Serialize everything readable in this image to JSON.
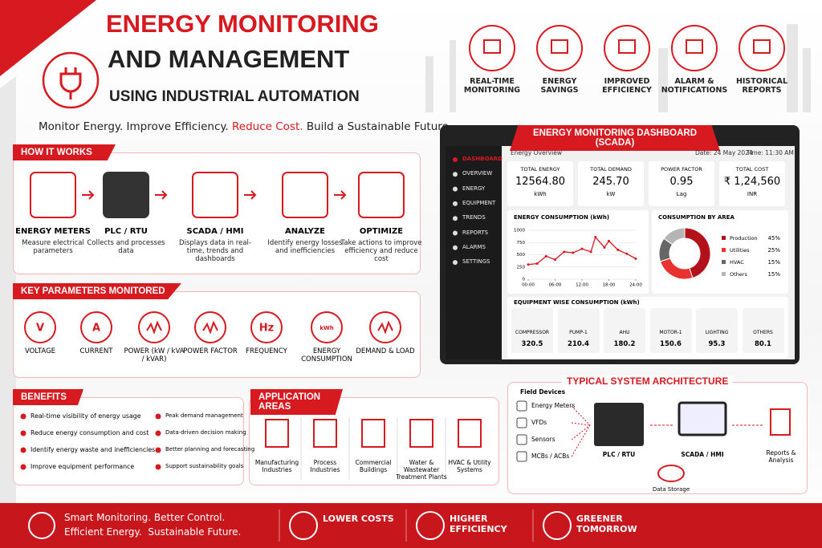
{
  "header": {
    "title_line1": "ENERGY MONITORING",
    "title_line2": "AND MANAGEMENT",
    "title_line3": "USING INDUSTRIAL AUTOMATION",
    "tagline_start": "Monitor Energy. Improve Efficiency.",
    "tagline_highlight": "Reduce Cost.",
    "tagline_end": "Build a Sustainable Future."
  },
  "features": [
    "REAL-TIME MONITORING",
    "ENERGY SAVINGS",
    "IMPROVED EFFICIENCY",
    "ALARM & NOTIFICATIONS",
    "HISTORICAL REPORTS"
  ],
  "how_it_works": {
    "title": "HOW IT WORKS",
    "steps": [
      {
        "name": "ENERGY METERS",
        "desc": "Measure electrical parameters"
      },
      {
        "name": "PLC / RTU",
        "desc": "Collects and processes data"
      },
      {
        "name": "SCADA / HMI",
        "desc": "Displays data in real-time, trends and dashboards"
      },
      {
        "name": "ANALYZE",
        "desc": "Identify energy losses and inefficiencies"
      },
      {
        "name": "OPTIMIZE",
        "desc": "Take actions to improve efficiency and reduce cost"
      }
    ]
  },
  "parameters": {
    "title": "KEY PARAMETERS MONITORED",
    "items": [
      {
        "symbol": "V",
        "label": "VOLTAGE"
      },
      {
        "symbol": "A",
        "label": "CURRENT"
      },
      {
        "label": "POWER (kW / kVA / kVAR)"
      },
      {
        "label": "POWER FACTOR"
      },
      {
        "symbol": "Hz",
        "label": "FREQUENCY"
      },
      {
        "symbol": "kWh",
        "label": "ENERGY CONSUMPTION"
      },
      {
        "label": "DEMAND & LOAD"
      }
    ]
  },
  "benefits": {
    "title": "BENEFITS",
    "items": [
      "Real-time visibility of energy usage",
      "Reduce energy consumption and cost",
      "Identify energy waste and inefficiencies",
      "Improve equipment performance",
      "Peak demand management",
      "Data-driven decision making",
      "Better planning and forecasting",
      "Support sustainability goals"
    ]
  },
  "applications": {
    "title": "APPLICATION AREAS",
    "items": [
      "Manufacturing Industries",
      "Process Industries",
      "Commercial Buildings",
      "Water & Wastewater Treatment Plants",
      "HVAC & Utility Systems"
    ]
  },
  "dashboard": {
    "title": "ENERGY MONITORING DASHBOARD (SCADA)",
    "menu": [
      "DASHBOARD",
      "OVERVIEW",
      "ENERGY",
      "EQUIPMENT",
      "TRENDS",
      "REPORTS",
      "ALARMS",
      "SETTINGS"
    ],
    "overview": "Energy Overview",
    "date": "Date: 24 May 2024",
    "time": "Time: 11:30 AM",
    "kpis": [
      {
        "label": "TOTAL ENERGY",
        "value": "12564.80",
        "unit": "kWh"
      },
      {
        "label": "TOTAL DEMAND",
        "value": "245.70",
        "unit": "kW"
      },
      {
        "label": "POWER FACTOR",
        "value": "0.95",
        "unit": "Lag"
      },
      {
        "label": "TOTAL COST",
        "value": "₹ 1,24,560",
        "unit": "INR"
      }
    ],
    "consumption_chart": {
      "type": "line",
      "title": "ENERGY CONSUMPTION (kWh)",
      "x": [
        0,
        2,
        4,
        6,
        8,
        10,
        12,
        14,
        15,
        17,
        18,
        20,
        22,
        24
      ],
      "values": [
        300,
        320,
        470,
        400,
        560,
        540,
        620,
        560,
        860,
        650,
        780,
        600,
        520,
        420
      ],
      "color": "#d71920",
      "xlim": [
        0,
        24
      ],
      "xticks": [
        {
          "value": 0,
          "label": "00:00"
        },
        {
          "value": 6,
          "label": "06:00"
        },
        {
          "value": 12,
          "label": "12:00"
        },
        {
          "value": 18,
          "label": "18:00"
        },
        {
          "value": 24,
          "label": "24:00"
        }
      ],
      "ylim": [
        0,
        1000
      ],
      "yticks": [
        0,
        250,
        500,
        750,
        1000
      ],
      "grid": true
    },
    "area_chart": {
      "type": "pie",
      "title": "CONSUMPTION BY AREA",
      "categories": [
        "Production",
        "Utilities",
        "HVAC",
        "Others"
      ],
      "values": [
        45,
        25,
        15,
        15
      ],
      "value_labels": [
        "45%",
        "25%",
        "15%",
        "15%"
      ],
      "colors": [
        "#b3121a",
        "#e8322f",
        "#666666",
        "#b5b5b5"
      ]
    },
    "equipment": {
      "title": "EQUIPMENT WISE CONSUMPTION (kWh)",
      "items": [
        {
          "name": "COMPRESSOR",
          "value": "320.5"
        },
        {
          "name": "PUMP-1",
          "value": "210.4"
        },
        {
          "name": "AHU",
          "value": "180.2"
        },
        {
          "name": "MOTOR-1",
          "value": "150.6"
        },
        {
          "name": "LIGHTING",
          "value": "95.3"
        },
        {
          "name": "OTHERS",
          "value": "80.1"
        }
      ]
    }
  },
  "architecture": {
    "title": "TYPICAL SYSTEM ARCHITECTURE",
    "field_devices": "Field Devices",
    "devices": [
      "Energy Meters",
      "VFDs",
      "Sensors",
      "MCBs / ACBs"
    ],
    "plc": "PLC / RTU",
    "scada": "SCADA / HMI",
    "reports": "Reports & Analysis",
    "storage": "Data Storage"
  },
  "footer": {
    "slogan_line1": "Smart Monitoring. Better Control.",
    "slogan_line2": "Efficient Energy.  Sustainable Future.",
    "items": [
      "LOWER COSTS",
      "HIGHER EFFICIENCY",
      "GREENER TOMORROW"
    ]
  }
}
